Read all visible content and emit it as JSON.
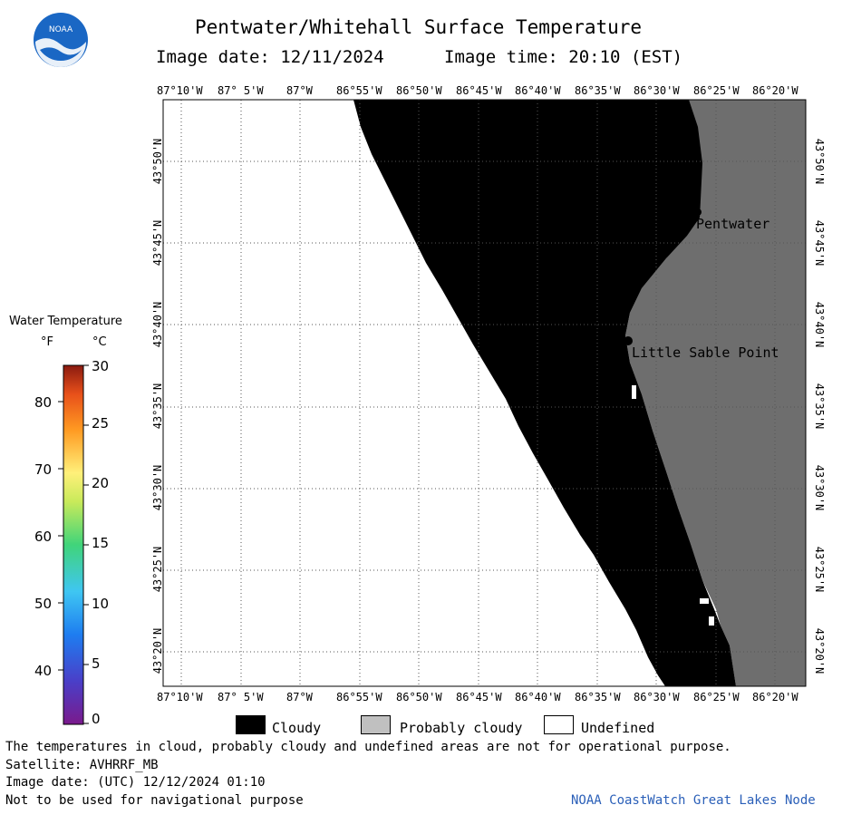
{
  "header": {
    "title": "Pentwater/Whitehall Surface Temperature",
    "image_date_label": "Image date: 12/11/2024",
    "image_time_label": "Image time: 20:10 (EST)"
  },
  "logo": {
    "text": "NOAA",
    "icon": "noaa-logo-icon",
    "color": "#1a67c4"
  },
  "map": {
    "lon_labels": [
      "87°10'W",
      "87° 5'W",
      "87°W",
      "86°55'W",
      "86°50'W",
      "86°45'W",
      "86°40'W",
      "86°35'W",
      "86°30'W",
      "86°25'W",
      "86°20'W"
    ],
    "lat_labels": [
      "43°50'N",
      "43°45'N",
      "43°40'N",
      "43°35'N",
      "43°30'N",
      "43°25'N",
      "43°20'N"
    ],
    "places": [
      {
        "name": "Pentwater"
      },
      {
        "name": "Little Sable Point"
      }
    ],
    "colors": {
      "cloud": "#000000",
      "land": "#6e6e6e",
      "undefined": "#ffffff",
      "grid": "#555555"
    }
  },
  "colorbar": {
    "title": "Water Temperature",
    "unit_f": "°F",
    "unit_c": "°C",
    "f_ticks": [
      "80",
      "70",
      "60",
      "50",
      "40"
    ],
    "c_ticks": [
      "30",
      "25",
      "20",
      "15",
      "10",
      "5",
      "0"
    ]
  },
  "legend": {
    "items": [
      {
        "label": "Cloudy",
        "color": "#000000"
      },
      {
        "label": "Probably cloudy",
        "color": "#c0c0c0"
      },
      {
        "label": "Undefined",
        "color": "#ffffff"
      }
    ]
  },
  "footer": {
    "disclaimer": "The temperatures in cloud, probably cloudy and undefined areas are not for operational purpose.",
    "satellite": "Satellite: AVHRRF_MB",
    "utc_date": "Image date: (UTC) 12/12/2024  01:10",
    "nav_warning": "Not to be used for navigational purpose",
    "credit": "NOAA CoastWatch Great Lakes Node"
  }
}
